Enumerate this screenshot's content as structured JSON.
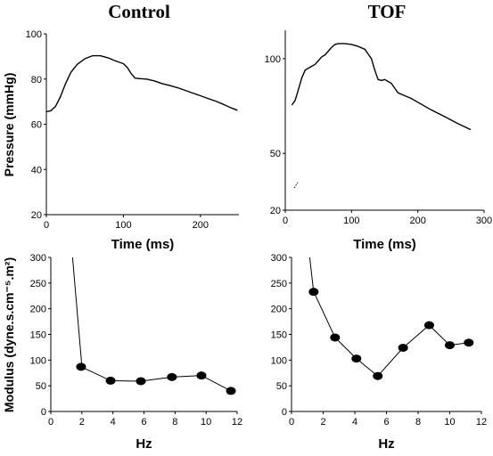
{
  "figure": {
    "columns": [
      "Control",
      "TOF"
    ],
    "y_axis_titles": {
      "pressure": "Pressure (mmHg)",
      "modulus": "Modulus (dyne.s.cm⁻⁵.m²)"
    }
  },
  "chart_data": [
    {
      "id": "control-pressure",
      "type": "line",
      "title": "Control",
      "xlabel": "Time (ms)",
      "ylabel": "Pressure (mmHg)",
      "xlim": [
        0,
        250
      ],
      "ylim": [
        20,
        100
      ],
      "xticks": [
        0,
        100,
        200
      ],
      "yticks": [
        20,
        40,
        60,
        80,
        100
      ],
      "series": [
        {
          "x": [
            0,
            6,
            12,
            18,
            25,
            32,
            40,
            50,
            60,
            70,
            80,
            90,
            100,
            105,
            110,
            115,
            120,
            130,
            140,
            150,
            160,
            170,
            180,
            190,
            200,
            210,
            220,
            230,
            240,
            248
          ],
          "y": [
            65.5,
            66,
            68,
            72,
            78,
            83,
            86.5,
            89,
            90.3,
            90.3,
            89.4,
            88,
            86.8,
            85.2,
            82.5,
            80.4,
            80.2,
            80,
            79.2,
            78,
            77.2,
            76.2,
            75,
            73.8,
            72.6,
            71.4,
            70.2,
            68.8,
            67.2,
            66.2
          ]
        }
      ]
    },
    {
      "id": "tof-pressure",
      "type": "line",
      "title": "TOF",
      "xlabel": "Time (ms)",
      "ylabel": "",
      "xlim": [
        0,
        300
      ],
      "ylim": [
        20,
        115
      ],
      "xticks": [
        0,
        100,
        200,
        300
      ],
      "yticks": [
        20,
        50,
        100
      ],
      "series": [
        {
          "x": [
            10,
            15,
            20,
            25,
            30,
            35,
            40,
            45,
            50,
            55,
            60,
            65,
            70,
            75,
            80,
            90,
            100,
            110,
            120,
            130,
            135,
            140,
            145,
            150,
            160,
            170,
            180,
            190,
            200,
            220,
            240,
            260,
            280
          ],
          "y": [
            75.5,
            78,
            84,
            90,
            94,
            95,
            96,
            97,
            99,
            101,
            102,
            104,
            106,
            107.5,
            108,
            108,
            107.5,
            106.5,
            105,
            100,
            94,
            89,
            88.5,
            89,
            87,
            82,
            80.5,
            79,
            77,
            73,
            69.5,
            65.8,
            62.5
          ]
        }
      ]
    },
    {
      "id": "control-modulus",
      "type": "line",
      "title": "",
      "xlabel": "Hz",
      "ylabel": "Modulus (dyne.s.cm⁻⁵.m²)",
      "xlim": [
        0,
        12
      ],
      "ylim": [
        0,
        300
      ],
      "xticks": [
        0,
        2,
        4,
        6,
        8,
        10,
        12
      ],
      "yticks": [
        0,
        50,
        100,
        150,
        200,
        250,
        300
      ],
      "leading_line": {
        "x": [
          1.4,
          2.0
        ],
        "y": [
          300,
          88
        ]
      },
      "points": {
        "x": [
          1.95,
          3.85,
          5.8,
          7.8,
          9.7,
          11.6
        ],
        "y": [
          87,
          60,
          59,
          67,
          70,
          40
        ]
      }
    },
    {
      "id": "tof-modulus",
      "type": "line",
      "title": "",
      "xlabel": "Hz",
      "ylabel": "",
      "xlim": [
        0,
        12
      ],
      "ylim": [
        0,
        300
      ],
      "xticks": [
        0,
        2,
        4,
        6,
        8,
        10,
        12
      ],
      "yticks": [
        0,
        50,
        100,
        150,
        200,
        250,
        300
      ],
      "leading_line": {
        "x": [
          1.15,
          1.4
        ],
        "y": [
          300,
          232
        ]
      },
      "points": {
        "x": [
          1.4,
          2.75,
          4.1,
          5.45,
          7.05,
          8.7,
          10.0,
          11.2
        ],
        "y": [
          233,
          144,
          103,
          69,
          124,
          168,
          129,
          134
        ]
      }
    }
  ]
}
